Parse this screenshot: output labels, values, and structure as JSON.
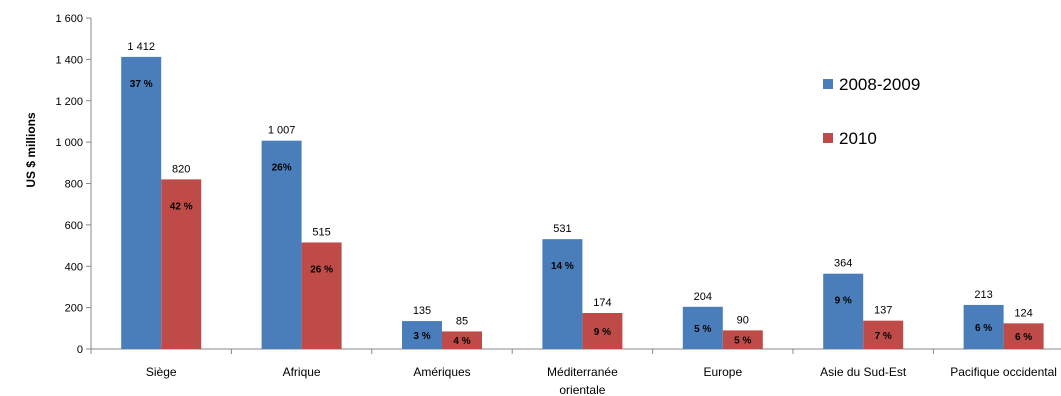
{
  "chart_data": {
    "type": "bar",
    "ylabel": "US $  millions",
    "ylim": [
      0,
      1600
    ],
    "yticks": [
      0,
      200,
      400,
      600,
      800,
      1000,
      1200,
      1400,
      1600
    ],
    "ytick_labels": [
      "0",
      "200",
      "400",
      "600",
      "800",
      "1 000",
      "1 200",
      "1 400",
      "1 600"
    ],
    "grid": false,
    "legend_position": "right",
    "categories": [
      [
        "Siège"
      ],
      [
        "Afrique"
      ],
      [
        "Amériques"
      ],
      [
        "Méditerranée",
        "orientale"
      ],
      [
        "Europe"
      ],
      [
        "Asie du Sud-Est"
      ],
      [
        "Pacifique occidental"
      ]
    ],
    "series": [
      {
        "name": "2008-2009",
        "color": "#4a7ebb",
        "values": [
          1412,
          1007,
          135,
          531,
          204,
          364,
          213
        ],
        "value_labels": [
          "1 412",
          "1 007",
          "135",
          "531",
          "204",
          "364",
          "213"
        ],
        "percent_labels": [
          "37 %",
          "26%",
          "3 %",
          "14 %",
          "5 %",
          "9 %",
          "6 %"
        ]
      },
      {
        "name": "2010",
        "color": "#be4b48",
        "values": [
          820,
          515,
          85,
          174,
          90,
          137,
          124
        ],
        "value_labels": [
          "820",
          "515",
          "85",
          "174",
          "90",
          "137",
          "124"
        ],
        "percent_labels": [
          "42 %",
          "26 %",
          "4 %",
          "9 %",
          "5 %",
          "7 %",
          "6 %"
        ]
      }
    ]
  }
}
